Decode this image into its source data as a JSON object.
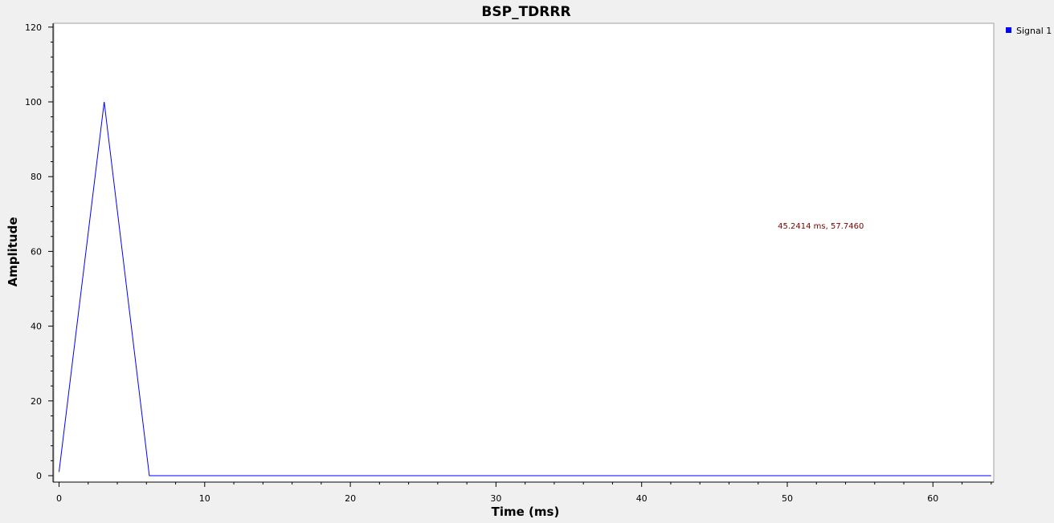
{
  "chart_data": {
    "type": "line",
    "title": "BSP_TDRRR",
    "xlabel": "Time (ms)",
    "ylabel": "Amplitude",
    "xlim": [
      0,
      64
    ],
    "ylim": [
      0,
      120
    ],
    "x_ticks": [
      0,
      10,
      20,
      30,
      40,
      50,
      60
    ],
    "y_ticks": [
      0,
      20,
      40,
      60,
      80,
      100,
      120
    ],
    "grid": false,
    "legend_position": "top-right",
    "series": [
      {
        "name": "Signal 1",
        "color": "#0000ff",
        "x": [
          0.0,
          3.1,
          6.2,
          7.0,
          64.0
        ],
        "y": [
          1.0,
          100.0,
          0.0,
          0.0,
          0.0
        ]
      }
    ],
    "annotation": {
      "text": "45.2414 ms, 57.7460",
      "x": 45.2414,
      "y": 57.746,
      "color": "#7a0000"
    }
  }
}
